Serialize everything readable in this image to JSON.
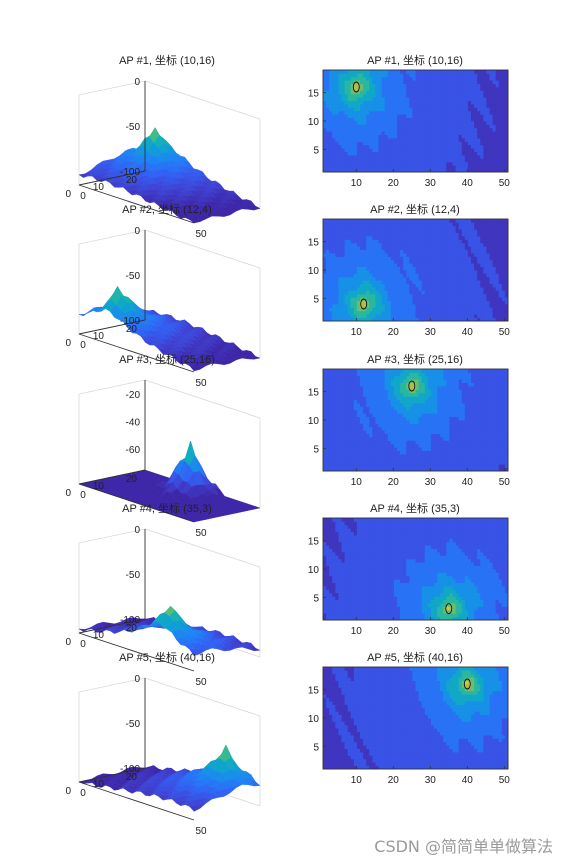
{
  "watermark": "CSDN @简简单单做算法",
  "colors": {
    "axis": "#333333",
    "grid": "#d9d9d9",
    "contour_line": "#111111",
    "colormap": [
      "#3e26a8",
      "#3f43d5",
      "#3162f5",
      "#1f83f5",
      "#0f9ed8",
      "#12b2b7",
      "#42bb87",
      "#92bd5b",
      "#d1ba3a",
      "#f9cb36",
      "#f9f914"
    ]
  },
  "chart_data": [
    {
      "type": "surface3d",
      "title": "AP #1, 坐标 (10,16)",
      "ap": [
        10,
        16
      ],
      "x_ticks": [
        "0",
        "50"
      ],
      "y_ticks": [
        "0",
        "10",
        "20"
      ],
      "z_ticks": [
        "-100",
        "-50",
        "0"
      ],
      "xlim": [
        0,
        50
      ],
      "ylim": [
        0,
        20
      ],
      "zlim": [
        -100,
        0
      ]
    },
    {
      "type": "contour",
      "title": "AP #1, 坐标 (10,16)",
      "ap": [
        10,
        16
      ],
      "x_ticks": [
        "10",
        "20",
        "30",
        "40",
        "50"
      ],
      "y_ticks": [
        "5",
        "10",
        "15"
      ],
      "xlim": [
        1,
        51
      ],
      "ylim": [
        1,
        19
      ]
    },
    {
      "type": "surface3d",
      "title": "AP #2, 坐标 (12,4)",
      "ap": [
        12,
        4
      ],
      "x_ticks": [
        "0",
        "50"
      ],
      "y_ticks": [
        "0",
        "10",
        "20"
      ],
      "z_ticks": [
        "-100",
        "-50",
        "0"
      ],
      "xlim": [
        0,
        50
      ],
      "ylim": [
        0,
        20
      ],
      "zlim": [
        -100,
        0
      ]
    },
    {
      "type": "contour",
      "title": "AP #2, 坐标 (12,4)",
      "ap": [
        12,
        4
      ],
      "x_ticks": [
        "10",
        "20",
        "30",
        "40",
        "50"
      ],
      "y_ticks": [
        "5",
        "10",
        "15"
      ],
      "xlim": [
        1,
        51
      ],
      "ylim": [
        1,
        19
      ]
    },
    {
      "type": "surface3d",
      "title": "AP #3, 坐标 (25,16)",
      "ap": [
        25,
        16
      ],
      "x_ticks": [
        "0",
        "50"
      ],
      "y_ticks": [
        "0",
        "10",
        "20"
      ],
      "z_ticks": [
        "-60",
        "-40",
        "-20"
      ],
      "xlim": [
        0,
        50
      ],
      "ylim": [
        0,
        20
      ],
      "zlim": [
        -75,
        -10
      ]
    },
    {
      "type": "contour",
      "title": "AP #3, 坐标 (25,16)",
      "ap": [
        25,
        16
      ],
      "x_ticks": [
        "10",
        "20",
        "30",
        "40",
        "50"
      ],
      "y_ticks": [
        "5",
        "10",
        "15"
      ],
      "xlim": [
        1,
        51
      ],
      "ylim": [
        1,
        19
      ]
    },
    {
      "type": "surface3d",
      "title": "AP #4, 坐标 (35,3)",
      "ap": [
        35,
        3
      ],
      "x_ticks": [
        "0",
        "50"
      ],
      "y_ticks": [
        "0",
        "10",
        "20"
      ],
      "z_ticks": [
        "-100",
        "-50",
        "0"
      ],
      "xlim": [
        0,
        50
      ],
      "ylim": [
        0,
        20
      ],
      "zlim": [
        -100,
        0
      ]
    },
    {
      "type": "contour",
      "title": "AP #4, 坐标 (35,3)",
      "ap": [
        35,
        3
      ],
      "x_ticks": [
        "10",
        "20",
        "30",
        "40",
        "50"
      ],
      "y_ticks": [
        "5",
        "10",
        "15"
      ],
      "xlim": [
        1,
        51
      ],
      "ylim": [
        1,
        19
      ]
    },
    {
      "type": "surface3d",
      "title": "AP #5, 坐标 (40,16)",
      "ap": [
        40,
        16
      ],
      "x_ticks": [
        "0",
        "50"
      ],
      "y_ticks": [
        "0",
        "10",
        "20"
      ],
      "z_ticks": [
        "-100",
        "-50",
        "0"
      ],
      "xlim": [
        0,
        50
      ],
      "ylim": [
        0,
        20
      ],
      "zlim": [
        -100,
        0
      ]
    },
    {
      "type": "contour",
      "title": "AP #5, 坐标 (40,16)",
      "ap": [
        40,
        16
      ],
      "x_ticks": [
        "10",
        "20",
        "30",
        "40",
        "50"
      ],
      "y_ticks": [
        "5",
        "10",
        "15"
      ],
      "xlim": [
        1,
        51
      ],
      "ylim": [
        1,
        19
      ]
    }
  ]
}
